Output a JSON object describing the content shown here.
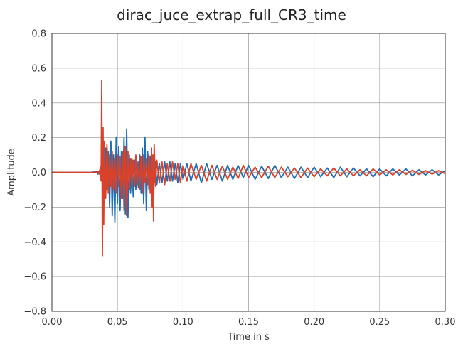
{
  "chart_data": {
    "type": "line",
    "title": "dirac_juce_extrap_full_CR3_time",
    "xlabel": "Time in s",
    "ylabel": "Amplitude",
    "xlim": [
      0.0,
      0.3
    ],
    "ylim": [
      -0.8,
      0.8
    ],
    "xticks": [
      0.0,
      0.05,
      0.1,
      0.15,
      0.2,
      0.25,
      0.3
    ],
    "xtick_labels": [
      "0.00",
      "0.05",
      "0.10",
      "0.15",
      "0.20",
      "0.25",
      "0.30"
    ],
    "yticks": [
      -0.8,
      -0.6,
      -0.4,
      -0.2,
      0.0,
      0.2,
      0.4,
      0.6,
      0.8
    ],
    "ytick_labels": [
      "−0.8",
      "−0.6",
      "−0.4",
      "−0.2",
      "0.0",
      "0.2",
      "0.4",
      "0.6",
      "0.8"
    ],
    "grid": true,
    "series": [
      {
        "color": "#1f6fb4",
        "x": [
          0.0,
          0.03,
          0.034,
          0.035,
          0.037,
          0.038,
          0.039,
          0.04,
          0.041,
          0.042,
          0.043,
          0.044,
          0.045,
          0.046,
          0.047,
          0.048,
          0.049,
          0.05,
          0.051,
          0.052,
          0.053,
          0.054,
          0.055,
          0.056,
          0.057,
          0.058,
          0.059,
          0.06,
          0.061,
          0.062,
          0.063,
          0.064,
          0.065,
          0.066,
          0.067,
          0.068,
          0.069,
          0.07,
          0.071,
          0.072,
          0.073,
          0.074,
          0.075,
          0.076,
          0.077,
          0.078,
          0.079,
          0.08,
          0.082,
          0.084,
          0.086,
          0.088,
          0.09,
          0.092,
          0.094,
          0.096,
          0.098,
          0.1,
          0.103,
          0.106,
          0.11,
          0.114,
          0.118,
          0.122,
          0.126,
          0.13,
          0.134,
          0.138,
          0.142,
          0.146,
          0.15,
          0.155,
          0.16,
          0.165,
          0.17,
          0.175,
          0.18,
          0.185,
          0.19,
          0.195,
          0.2,
          0.205,
          0.21,
          0.215,
          0.22,
          0.225,
          0.23,
          0.235,
          0.24,
          0.245,
          0.25,
          0.255,
          0.26,
          0.265,
          0.27,
          0.275,
          0.28,
          0.285,
          0.29,
          0.295,
          0.3
        ],
        "y": [
          0.0,
          0.0,
          0.005,
          -0.01,
          0.02,
          -0.05,
          0.08,
          -0.12,
          0.14,
          -0.1,
          0.12,
          -0.2,
          0.18,
          -0.25,
          0.1,
          -0.29,
          0.2,
          -0.18,
          0.15,
          -0.22,
          0.12,
          -0.15,
          0.2,
          -0.24,
          0.25,
          -0.26,
          0.1,
          -0.12,
          0.08,
          -0.14,
          0.07,
          -0.1,
          0.06,
          -0.09,
          0.1,
          -0.12,
          0.14,
          -0.18,
          0.2,
          -0.22,
          0.12,
          -0.1,
          0.09,
          -0.08,
          0.07,
          -0.06,
          0.06,
          -0.07,
          0.05,
          -0.06,
          0.06,
          -0.05,
          0.06,
          -0.05,
          0.05,
          -0.06,
          0.05,
          -0.04,
          0.05,
          -0.05,
          0.05,
          -0.06,
          0.05,
          -0.04,
          0.04,
          -0.05,
          0.04,
          -0.04,
          0.04,
          -0.03,
          0.04,
          -0.04,
          0.035,
          -0.035,
          0.04,
          -0.03,
          0.03,
          -0.035,
          0.03,
          -0.03,
          0.03,
          -0.025,
          0.025,
          -0.03,
          0.03,
          -0.025,
          0.025,
          -0.02,
          0.02,
          -0.025,
          0.02,
          -0.02,
          0.02,
          -0.015,
          0.02,
          -0.02,
          0.015,
          -0.015,
          0.015,
          -0.015,
          0.01
        ]
      },
      {
        "color": "#d9412b",
        "x": [
          0.0,
          0.03,
          0.034,
          0.035,
          0.036,
          0.037,
          0.0375,
          0.038,
          0.0385,
          0.039,
          0.0395,
          0.04,
          0.041,
          0.042,
          0.043,
          0.044,
          0.045,
          0.046,
          0.047,
          0.048,
          0.049,
          0.05,
          0.051,
          0.052,
          0.053,
          0.054,
          0.055,
          0.056,
          0.057,
          0.058,
          0.059,
          0.06,
          0.061,
          0.062,
          0.063,
          0.064,
          0.065,
          0.066,
          0.067,
          0.068,
          0.069,
          0.07,
          0.071,
          0.072,
          0.073,
          0.074,
          0.075,
          0.076,
          0.0765,
          0.077,
          0.0775,
          0.078,
          0.079,
          0.08,
          0.082,
          0.084,
          0.086,
          0.088,
          0.09,
          0.092,
          0.094,
          0.096,
          0.098,
          0.1,
          0.103,
          0.106,
          0.11,
          0.114,
          0.118,
          0.122,
          0.126,
          0.13,
          0.134,
          0.138,
          0.142,
          0.146,
          0.15,
          0.155,
          0.16,
          0.165,
          0.17,
          0.175,
          0.18,
          0.185,
          0.19,
          0.195,
          0.2,
          0.205,
          0.21,
          0.215,
          0.22,
          0.225,
          0.23,
          0.235,
          0.24,
          0.245,
          0.25,
          0.255,
          0.26,
          0.265,
          0.27,
          0.275,
          0.28,
          0.285,
          0.29,
          0.295,
          0.3
        ],
        "y": [
          0.0,
          0.0,
          0.0,
          0.005,
          -0.01,
          0.03,
          -0.05,
          0.53,
          -0.48,
          0.26,
          -0.3,
          0.18,
          -0.15,
          0.16,
          -0.12,
          0.1,
          -0.08,
          0.12,
          -0.1,
          0.08,
          -0.12,
          0.1,
          -0.08,
          0.09,
          -0.15,
          0.12,
          -0.22,
          0.15,
          -0.25,
          0.12,
          -0.1,
          0.08,
          -0.09,
          0.07,
          -0.08,
          0.1,
          -0.07,
          0.06,
          -0.1,
          0.09,
          -0.12,
          0.1,
          -0.06,
          0.08,
          -0.07,
          0.1,
          -0.12,
          0.14,
          -0.2,
          0.1,
          -0.28,
          0.16,
          -0.08,
          0.07,
          -0.06,
          0.06,
          -0.07,
          0.05,
          -0.05,
          0.06,
          -0.04,
          0.05,
          -0.06,
          0.04,
          -0.05,
          0.05,
          -0.04,
          0.04,
          -0.05,
          0.04,
          -0.04,
          0.035,
          -0.04,
          0.03,
          -0.035,
          0.04,
          -0.03,
          0.03,
          -0.03,
          0.035,
          -0.03,
          0.03,
          -0.025,
          0.025,
          -0.03,
          0.025,
          -0.025,
          0.02,
          -0.02,
          0.025,
          -0.02,
          0.02,
          -0.02,
          0.015,
          -0.02,
          0.02,
          -0.015,
          0.015,
          -0.015,
          0.015,
          -0.012,
          0.012,
          -0.012,
          0.01,
          -0.01,
          0.01,
          -0.008
        ]
      }
    ]
  }
}
